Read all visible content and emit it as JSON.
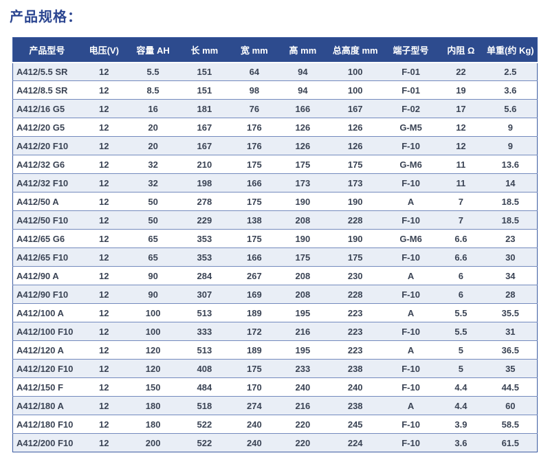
{
  "page": {
    "title": "产品规格："
  },
  "colors": {
    "header_bg": "#2d4b8e",
    "header_text": "#ffffff",
    "stripe_row": "#e9eef6",
    "white_row": "#ffffff",
    "row_line": "#7289bd",
    "outer_border": "#3a5aa0",
    "cell_text": "#3a4354",
    "title_color": "#2b4590"
  },
  "table": {
    "columns": [
      "产品型号",
      "电压(V)",
      "容量 AH",
      "长 mm",
      "宽 mm",
      "高 mm",
      "总高度 mm",
      "端子型号",
      "内阻 Ω",
      "单重(约 Kg)"
    ],
    "rows": [
      [
        "A412/5.5 SR",
        "12",
        "5.5",
        "151",
        "64",
        "94",
        "100",
        "F-01",
        "22",
        "2.5"
      ],
      [
        "A412/8.5 SR",
        "12",
        "8.5",
        "151",
        "98",
        "94",
        "100",
        "F-01",
        "19",
        "3.6"
      ],
      [
        "A412/16 G5",
        "12",
        "16",
        "181",
        "76",
        "166",
        "167",
        "F-02",
        "17",
        "5.6"
      ],
      [
        "A412/20 G5",
        "12",
        "20",
        "167",
        "176",
        "126",
        "126",
        "G-M5",
        "12",
        "9"
      ],
      [
        "A412/20 F10",
        "12",
        "20",
        "167",
        "176",
        "126",
        "126",
        "F-10",
        "12",
        "9"
      ],
      [
        "A412/32 G6",
        "12",
        "32",
        "210",
        "175",
        "175",
        "175",
        "G-M6",
        "11",
        "13.6"
      ],
      [
        "A412/32 F10",
        "12",
        "32",
        "198",
        "166",
        "173",
        "173",
        "F-10",
        "11",
        "14"
      ],
      [
        "A412/50 A",
        "12",
        "50",
        "278",
        "175",
        "190",
        "190",
        "A",
        "7",
        "18.5"
      ],
      [
        "A412/50 F10",
        "12",
        "50",
        "229",
        "138",
        "208",
        "228",
        "F-10",
        "7",
        "18.5"
      ],
      [
        "A412/65 G6",
        "12",
        "65",
        "353",
        "175",
        "190",
        "190",
        "G-M6",
        "6.6",
        "23"
      ],
      [
        "A412/65 F10",
        "12",
        "65",
        "353",
        "166",
        "175",
        "175",
        "F-10",
        "6.6",
        "30"
      ],
      [
        "A412/90 A",
        "12",
        "90",
        "284",
        "267",
        "208",
        "230",
        "A",
        "6",
        "34"
      ],
      [
        "A412/90 F10",
        "12",
        "90",
        "307",
        "169",
        "208",
        "228",
        "F-10",
        "6",
        "28"
      ],
      [
        "A412/100 A",
        "12",
        "100",
        "513",
        "189",
        "195",
        "223",
        "A",
        "5.5",
        "35.5"
      ],
      [
        "A412/100 F10",
        "12",
        "100",
        "333",
        "172",
        "216",
        "223",
        "F-10",
        "5.5",
        "31"
      ],
      [
        "A412/120 A",
        "12",
        "120",
        "513",
        "189",
        "195",
        "223",
        "A",
        "5",
        "36.5"
      ],
      [
        "A412/120 F10",
        "12",
        "120",
        "408",
        "175",
        "233",
        "238",
        "F-10",
        "5",
        "35"
      ],
      [
        "A412/150 F",
        "12",
        "150",
        "484",
        "170",
        "240",
        "240",
        "F-10",
        "4.4",
        "44.5"
      ],
      [
        "A412/180 A",
        "12",
        "180",
        "518",
        "274",
        "216",
        "238",
        "A",
        "4.4",
        "60"
      ],
      [
        "A412/180 F10",
        "12",
        "180",
        "522",
        "240",
        "220",
        "245",
        "F-10",
        "3.9",
        "58.5"
      ],
      [
        "A412/200 F10",
        "12",
        "200",
        "522",
        "240",
        "220",
        "224",
        "F-10",
        "3.6",
        "61.5"
      ]
    ]
  }
}
